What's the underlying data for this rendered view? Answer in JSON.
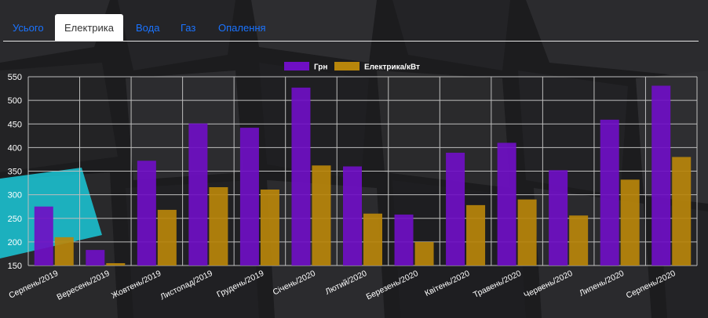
{
  "tabs": [
    {
      "label": "Усього",
      "active": false
    },
    {
      "label": "Електрика",
      "active": true
    },
    {
      "label": "Вода",
      "active": false
    },
    {
      "label": "Газ",
      "active": false
    },
    {
      "label": "Опалення",
      "active": false
    }
  ],
  "chart_data": {
    "type": "bar",
    "categories": [
      "Серпень/2019",
      "Вересень/2019",
      "Жовтень/2019",
      "Листопад/2019",
      "Грудень/2019",
      "Січень/2020",
      "Лютий/2020",
      "Березень/2020",
      "Квітень/2020",
      "Травень/2020",
      "Червень/2020",
      "Липень/2020",
      "Серпень/2020"
    ],
    "series": [
      {
        "name": "Грн",
        "color": "#6f0fc4",
        "values": [
          275,
          183,
          372,
          451,
          442,
          527,
          360,
          258,
          389,
          410,
          352,
          459,
          531
        ]
      },
      {
        "name": "Електрика/кВт",
        "color": "#b8860b",
        "values": [
          210,
          155,
          268,
          316,
          311,
          362,
          260,
          200,
          278,
          290,
          256,
          332,
          380
        ]
      }
    ],
    "ylim": [
      150,
      550
    ],
    "yticks": [
      150,
      200,
      250,
      300,
      350,
      400,
      450,
      500,
      550
    ],
    "grid": true,
    "legend": "top-center"
  }
}
